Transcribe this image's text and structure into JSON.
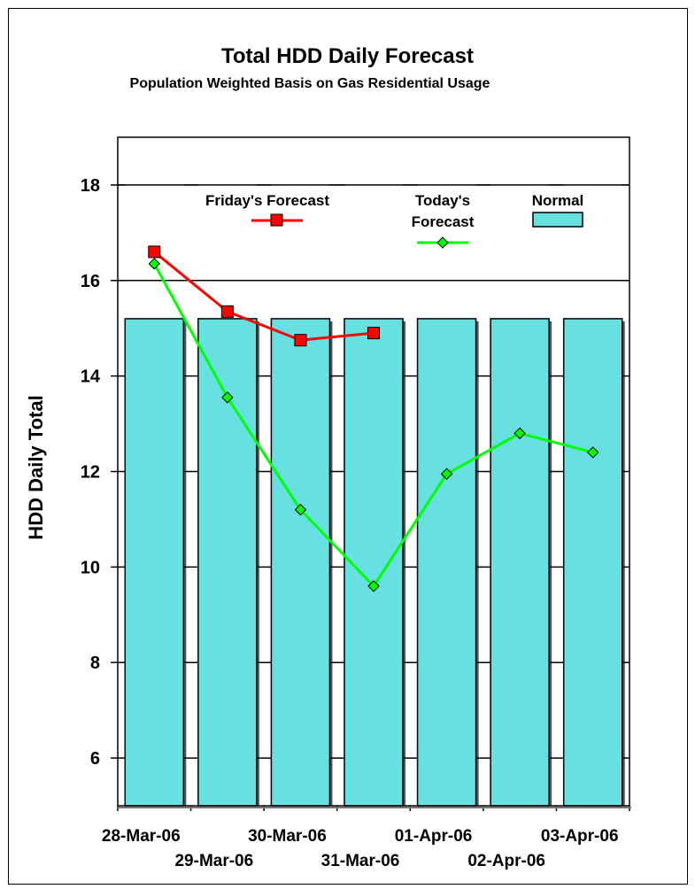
{
  "chart_data": {
    "type": "bar",
    "title": "Total HDD Daily Forecast",
    "subtitle": "Population Weighted Basis on Gas Residential Usage",
    "ylabel": "HDD Daily Total",
    "xlabel": "",
    "ylim": [
      5,
      19
    ],
    "yticks": [
      6,
      8,
      10,
      12,
      14,
      16,
      18
    ],
    "grid": true,
    "legend_placement": "top",
    "categories": [
      "28-Mar-06",
      "29-Mar-06",
      "30-Mar-06",
      "31-Mar-06",
      "01-Apr-06",
      "02-Apr-06",
      "03-Apr-06"
    ],
    "series": [
      {
        "name": "Normal",
        "kind": "bar",
        "color": "#66e0e0",
        "values": [
          15.2,
          15.2,
          15.2,
          15.2,
          15.2,
          15.2,
          15.2
        ]
      },
      {
        "name": "Friday's Forecast",
        "kind": "line",
        "color": "#ff0000",
        "marker": "square",
        "values": [
          16.6,
          15.35,
          14.75,
          14.9,
          null,
          null,
          null
        ]
      },
      {
        "name": "Today's Forecast",
        "kind": "line",
        "color": "#00ff00",
        "marker": "diamond",
        "values": [
          16.35,
          13.55,
          11.2,
          9.6,
          11.95,
          12.8,
          12.4
        ]
      }
    ],
    "legend": {
      "friday_label": "Friday's Forecast",
      "today_label_1": "Today's",
      "today_label_2": "Forecast",
      "normal_label": "Normal"
    }
  }
}
